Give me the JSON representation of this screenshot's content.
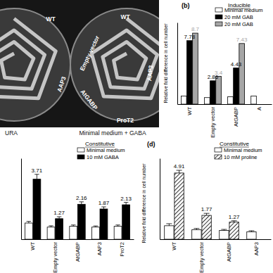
{
  "photo": {
    "left_plate": {
      "labels": [
        "WT",
        "AAP3"
      ],
      "caption": "URA"
    },
    "right_plate": {
      "labels": [
        "WT",
        "Empty vector",
        "AAP3",
        "AtGABP",
        "ProT2"
      ],
      "caption": "Minimal medium + GABA"
    }
  },
  "chart_data": [
    {
      "type": "bar",
      "title": "Inducible",
      "annotations": [
        "(b)"
      ],
      "y_label": "Relative fold difference in cell number",
      "categories": [
        "WT",
        "Empty vector",
        "AtGABP",
        "A"
      ],
      "series": [
        {
          "name": "Minimal medium",
          "color": "#ffffff",
          "values": [
            1,
            0.8,
            0.9,
            1
          ]
        },
        {
          "name": "20 mM GAB",
          "color": "#000000",
          "values": [
            7.78,
            2.86,
            4.43,
            null
          ],
          "data_labels": true
        },
        {
          "name": "20 mM GAB",
          "color": "#a6a6a6",
          "values": [
            8.7,
            3.4,
            7.43,
            null
          ],
          "data_labels": true
        }
      ],
      "ylim": [
        0,
        10
      ],
      "tick_labels": false,
      "legend": "upper right"
    },
    {
      "type": "bar",
      "title": "Constitutive",
      "categories": [
        "WT",
        "Empty vector",
        "AtGABP",
        "AAP3",
        "ProT2"
      ],
      "series": [
        {
          "name": "Minimal medium",
          "color": "#ffffff",
          "values": [
            1,
            0.75,
            0.8,
            0.75,
            0.8
          ],
          "errors": [
            0.1,
            0.08,
            0.08,
            0.07,
            0.08
          ]
        },
        {
          "name": "10 mM GABA",
          "color": "#000000",
          "values": [
            3.71,
            1.27,
            2.16,
            1.87,
            2.13
          ],
          "errors": [
            0.3,
            0.12,
            0.15,
            0.13,
            0.15
          ],
          "data_labels": true
        }
      ],
      "ylim": [
        0,
        5
      ],
      "tick_labels": false,
      "legend": "upper right"
    },
    {
      "type": "bar",
      "title": "Constitutive",
      "annotations": [
        "(d)"
      ],
      "y_label": "Relative fold difference in cell number",
      "categories": [
        "WT",
        "Empty vector",
        "AtGABP",
        "AAP3"
      ],
      "series": [
        {
          "name": "Minimal medium",
          "color": "#ffffff",
          "values": [
            1,
            0.7,
            0.65,
            0.55
          ],
          "errors": [
            0.15,
            0.1,
            0.08,
            0.08
          ]
        },
        {
          "name": "10 mM proline",
          "color": "#000000",
          "marker": "hatch",
          "values": [
            4.91,
            1.77,
            1.27,
            null
          ],
          "errors": [
            0.2,
            0.15,
            0.1,
            null
          ],
          "data_labels": true
        }
      ],
      "ylim": [
        0,
        6
      ],
      "tick_labels": false,
      "legend": "upper right"
    }
  ]
}
